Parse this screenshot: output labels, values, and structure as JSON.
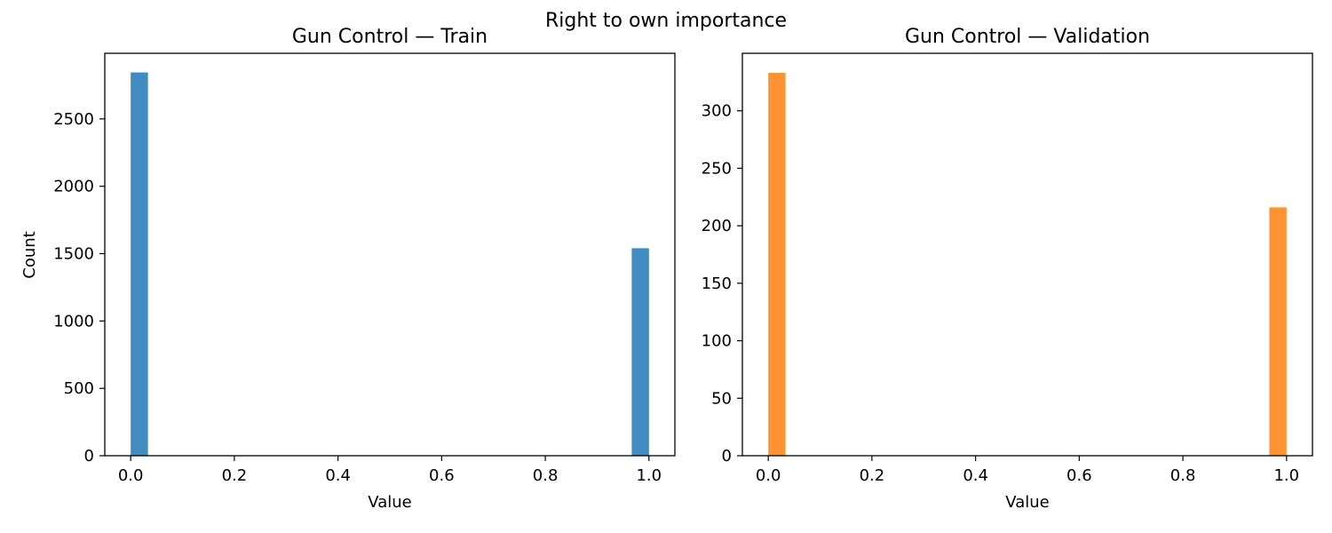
{
  "figure": {
    "suptitle": "Right to own importance"
  },
  "chart_data": [
    {
      "type": "bar",
      "title": "Gun Control — Train",
      "xlabel": "Value",
      "ylabel": "Count",
      "color": "#1f77b4",
      "bars": [
        {
          "x": 0.0,
          "value": 2845
        },
        {
          "x": 1.0,
          "value": 1540
        }
      ],
      "bin_width": 0.0333,
      "xlim": [
        -0.05,
        1.05
      ],
      "ylim": [
        0,
        2987
      ],
      "xticks": [
        0.0,
        0.2,
        0.4,
        0.6,
        0.8,
        1.0
      ],
      "xtick_labels": [
        "0.0",
        "0.2",
        "0.4",
        "0.6",
        "0.8",
        "1.0"
      ],
      "yticks": [
        0,
        500,
        1000,
        1500,
        2000,
        2500
      ],
      "ytick_labels": [
        "0",
        "500",
        "1000",
        "1500",
        "2000",
        "2500"
      ],
      "grid": false
    },
    {
      "type": "bar",
      "title": "Gun Control — Validation",
      "xlabel": "Value",
      "ylabel": "",
      "color": "#ff7f0e",
      "bars": [
        {
          "x": 0.0,
          "value": 333
        },
        {
          "x": 1.0,
          "value": 216
        }
      ],
      "bin_width": 0.0333,
      "xlim": [
        -0.05,
        1.05
      ],
      "ylim": [
        0,
        350
      ],
      "xticks": [
        0.0,
        0.2,
        0.4,
        0.6,
        0.8,
        1.0
      ],
      "xtick_labels": [
        "0.0",
        "0.2",
        "0.4",
        "0.6",
        "0.8",
        "1.0"
      ],
      "yticks": [
        0,
        50,
        100,
        150,
        200,
        250,
        300
      ],
      "ytick_labels": [
        "0",
        "50",
        "100",
        "150",
        "200",
        "250",
        "300"
      ],
      "grid": false
    }
  ]
}
